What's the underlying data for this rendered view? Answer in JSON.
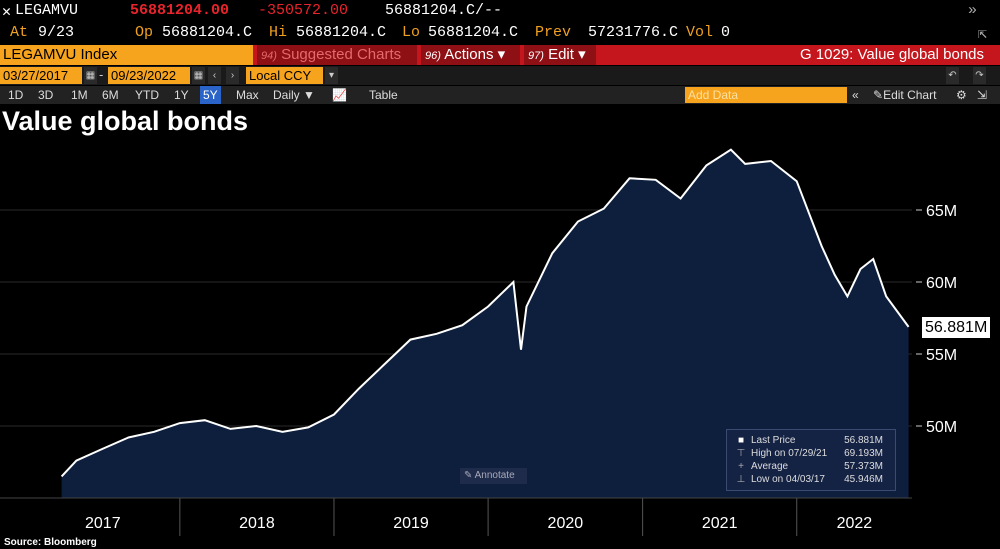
{
  "header": {
    "ticker": "LEGAMVU",
    "last": "56881204.00",
    "change": "-350572.00",
    "bidask": "56881204.C/--",
    "at_label": "At",
    "at_value": "9/23",
    "op_label": "Op",
    "op_value": "56881204.C",
    "hi_label": "Hi",
    "hi_value": "56881204.C",
    "lo_label": "Lo",
    "lo_value": "56881204.C",
    "prev_label": "Prev",
    "prev_value": "57231776.C",
    "vol_label": "Vol",
    "vol_value": "0"
  },
  "menubar": {
    "index_label": "LEGAMVU Index",
    "suggested_num": "94)",
    "suggested": "Suggested Charts",
    "actions_num": "96)",
    "actions": "Actions ▾",
    "edit_num": "97)",
    "edit": "Edit ▾",
    "chart_title": "G 1029: Value global bonds"
  },
  "dates": {
    "start": "03/27/2017",
    "end": "09/23/2022",
    "currency": "Local CCY"
  },
  "periods": [
    "1D",
    "3D",
    "1M",
    "6M",
    "YTD",
    "1Y",
    "5Y",
    "Max"
  ],
  "selected_period": "5Y",
  "toolbar": {
    "frequency": "Daily ▼",
    "table": "Table",
    "add_data": "Add Data",
    "edit_chart": "Edit Chart"
  },
  "chart_data": {
    "type": "area",
    "title": "Value global bonds",
    "x_ticks": [
      "2017",
      "2018",
      "2019",
      "2020",
      "2021",
      "2022"
    ],
    "y_ticks": [
      "50M",
      "55M",
      "60M",
      "65M"
    ],
    "ylim": [
      45,
      70
    ],
    "x": [
      "2017-03-27",
      "2017-05",
      "2017-07",
      "2017-09",
      "2017-11",
      "2018-01",
      "2018-03",
      "2018-05",
      "2018-07",
      "2018-09",
      "2018-11",
      "2019-01",
      "2019-03",
      "2019-05",
      "2019-07",
      "2019-09",
      "2019-11",
      "2020-01",
      "2020-03-01",
      "2020-03-19",
      "2020-04",
      "2020-06",
      "2020-08",
      "2020-10",
      "2020-12",
      "2021-02",
      "2021-04",
      "2021-06",
      "2021-07-29",
      "2021-09",
      "2021-11",
      "2022-01",
      "2022-03",
      "2022-04",
      "2022-05",
      "2022-06",
      "2022-07",
      "2022-08",
      "2022-09-23"
    ],
    "values": [
      46.5,
      47.6,
      48.4,
      49.2,
      49.6,
      50.2,
      50.4,
      49.8,
      50.0,
      49.6,
      49.9,
      50.8,
      52.6,
      54.3,
      56.0,
      56.4,
      57.0,
      58.3,
      60.0,
      55.3,
      58.3,
      62.0,
      64.2,
      65.1,
      67.2,
      67.1,
      65.8,
      68.1,
      69.19,
      68.2,
      68.4,
      67.0,
      62.5,
      60.5,
      59.0,
      60.9,
      61.6,
      59.0,
      56.88
    ],
    "last_label": "56.881M",
    "legend": [
      {
        "label": "Last Price",
        "value": "56.881M"
      },
      {
        "label": "High on 07/29/21",
        "value": "69.193M"
      },
      {
        "label": "Average",
        "value": "57.373M"
      },
      {
        "label": "Low on 04/03/17",
        "value": "45.946M"
      }
    ],
    "annotate": "Annotate",
    "source": "Source: Bloomberg",
    "colors": {
      "line": "#ffffff",
      "fill": "#0d1f3d",
      "grid": "#2a2a2a"
    }
  }
}
